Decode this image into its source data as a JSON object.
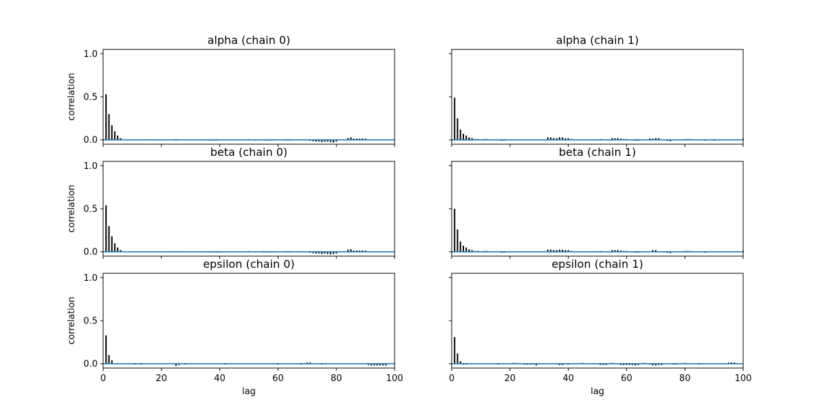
{
  "chart_data": [
    {
      "type": "bar",
      "title": "alpha (chain 0)",
      "xlabel": "",
      "ylabel": "correlation",
      "xlim": [
        0,
        100
      ],
      "ylim": [
        -0.05,
        1.05
      ],
      "xticks": [
        0,
        20,
        40,
        60,
        80,
        100
      ],
      "yticks": [
        0.0,
        0.5,
        1.0
      ],
      "x_tick_labels_shown": false,
      "y_tick_labels_shown": true,
      "lags": [
        1,
        2,
        3,
        4,
        5,
        6,
        7,
        10,
        16,
        17,
        25,
        36,
        37,
        38,
        39,
        50,
        52,
        56,
        57,
        58,
        63,
        64,
        68,
        71,
        72,
        73,
        74,
        75,
        76,
        77,
        78,
        79,
        80,
        84,
        85,
        86,
        87,
        88,
        89,
        90
      ],
      "values": [
        0.53,
        0.3,
        0.17,
        0.1,
        0.05,
        0.02,
        0.005,
        -0.005,
        0.007,
        0.007,
        0.01,
        -0.008,
        -0.008,
        -0.008,
        -0.008,
        0.008,
        -0.008,
        -0.008,
        -0.008,
        -0.008,
        -0.008,
        -0.008,
        0.008,
        -0.01,
        -0.015,
        -0.02,
        -0.02,
        -0.025,
        -0.02,
        -0.02,
        -0.025,
        -0.03,
        -0.02,
        0.02,
        0.03,
        0.015,
        0.015,
        0.015,
        0.015,
        0.015
      ],
      "reference_line_y": 0.0,
      "bar_color": "#000000",
      "line_color": "#1f77b4"
    },
    {
      "type": "bar",
      "title": "alpha (chain 1)",
      "xlabel": "",
      "ylabel": "",
      "xlim": [
        0,
        100
      ],
      "ylim": [
        -0.05,
        1.05
      ],
      "xticks": [
        0,
        20,
        40,
        60,
        80,
        100
      ],
      "yticks": [
        0.0,
        0.5,
        1.0
      ],
      "x_tick_labels_shown": false,
      "y_tick_labels_shown": false,
      "lags": [
        1,
        2,
        3,
        4,
        5,
        6,
        7,
        8,
        9,
        11,
        12,
        17,
        18,
        33,
        34,
        35,
        36,
        37,
        38,
        39,
        40,
        41,
        51,
        55,
        56,
        57,
        58,
        59,
        60,
        63,
        64,
        68,
        69,
        70,
        71,
        74,
        75,
        80,
        81,
        82,
        87,
        90,
        100
      ],
      "values": [
        0.49,
        0.25,
        0.12,
        0.07,
        0.05,
        0.03,
        0.02,
        0.01,
        0.01,
        0.01,
        0.01,
        -0.01,
        -0.01,
        0.03,
        0.03,
        0.02,
        0.02,
        0.03,
        0.03,
        0.02,
        0.02,
        0.01,
        0.01,
        0.02,
        0.02,
        0.02,
        0.015,
        0.01,
        0.01,
        -0.01,
        -0.01,
        0.015,
        0.015,
        0.02,
        0.02,
        -0.01,
        -0.015,
        0.01,
        0.01,
        0.01,
        -0.01,
        -0.01,
        0.01
      ],
      "reference_line_y": 0.0,
      "bar_color": "#000000",
      "line_color": "#1f77b4"
    },
    {
      "type": "bar",
      "title": "beta (chain 0)",
      "xlabel": "",
      "ylabel": "correlation",
      "xlim": [
        0,
        100
      ],
      "ylim": [
        -0.05,
        1.05
      ],
      "xticks": [
        0,
        20,
        40,
        60,
        80,
        100
      ],
      "yticks": [
        0.0,
        0.5,
        1.0
      ],
      "x_tick_labels_shown": false,
      "y_tick_labels_shown": true,
      "lags": [
        1,
        2,
        3,
        4,
        5,
        6,
        7,
        25,
        36,
        37,
        38,
        39,
        40,
        50,
        52,
        55,
        56,
        57,
        58,
        63,
        64,
        68,
        71,
        72,
        73,
        74,
        75,
        76,
        77,
        78,
        79,
        80,
        84,
        85,
        86,
        87,
        88,
        89,
        90
      ],
      "values": [
        0.54,
        0.3,
        0.18,
        0.1,
        0.05,
        0.02,
        0.005,
        0.008,
        -0.008,
        -0.008,
        -0.008,
        -0.008,
        -0.008,
        0.008,
        -0.008,
        -0.008,
        -0.008,
        -0.008,
        -0.008,
        -0.008,
        -0.008,
        0.008,
        -0.01,
        -0.015,
        -0.02,
        -0.02,
        -0.025,
        -0.02,
        -0.025,
        -0.03,
        -0.025,
        -0.02,
        0.025,
        0.03,
        0.015,
        0.015,
        0.015,
        0.015,
        0.015
      ],
      "reference_line_y": 0.0,
      "bar_color": "#000000",
      "line_color": "#1f77b4"
    },
    {
      "type": "bar",
      "title": "beta (chain 1)",
      "xlabel": "",
      "ylabel": "",
      "xlim": [
        0,
        100
      ],
      "ylim": [
        -0.05,
        1.05
      ],
      "xticks": [
        0,
        20,
        40,
        60,
        80,
        100
      ],
      "yticks": [
        0.0,
        0.5,
        1.0
      ],
      "x_tick_labels_shown": false,
      "y_tick_labels_shown": false,
      "lags": [
        1,
        2,
        3,
        4,
        5,
        6,
        7,
        8,
        9,
        11,
        12,
        17,
        18,
        33,
        34,
        35,
        36,
        37,
        38,
        39,
        40,
        41,
        51,
        55,
        56,
        57,
        58,
        59,
        60,
        63,
        64,
        69,
        70,
        74,
        75,
        80,
        81,
        82,
        87,
        100
      ],
      "values": [
        0.5,
        0.26,
        0.12,
        0.07,
        0.05,
        0.03,
        0.02,
        0.01,
        0.01,
        0.01,
        0.01,
        -0.01,
        -0.01,
        0.025,
        0.025,
        0.02,
        0.02,
        0.025,
        0.025,
        0.02,
        0.02,
        0.01,
        0.01,
        0.02,
        0.02,
        0.02,
        0.015,
        0.01,
        0.01,
        -0.01,
        -0.01,
        0.02,
        0.02,
        -0.01,
        -0.015,
        0.01,
        0.01,
        0.01,
        -0.01,
        0.01
      ],
      "reference_line_y": 0.0,
      "bar_color": "#000000",
      "line_color": "#1f77b4"
    },
    {
      "type": "bar",
      "title": "epsilon (chain 0)",
      "xlabel": "lag",
      "ylabel": "correlation",
      "xlim": [
        0,
        100
      ],
      "ylim": [
        -0.05,
        1.05
      ],
      "xticks": [
        0,
        20,
        40,
        60,
        80,
        100
      ],
      "yticks": [
        0.0,
        0.5,
        1.0
      ],
      "x_tick_labels_shown": true,
      "y_tick_labels_shown": true,
      "lags": [
        1,
        2,
        3,
        11,
        13,
        25,
        26,
        28,
        42,
        60,
        68,
        70,
        71,
        75,
        91,
        92,
        93,
        94,
        95,
        96,
        97
      ],
      "values": [
        0.33,
        0.1,
        0.04,
        -0.01,
        -0.01,
        -0.025,
        -0.015,
        -0.01,
        -0.01,
        -0.01,
        -0.01,
        0.015,
        0.015,
        -0.01,
        -0.015,
        -0.02,
        -0.02,
        -0.02,
        -0.02,
        -0.02,
        -0.02
      ],
      "reference_line_y": 0.0,
      "bar_color": "#000000",
      "line_color": "#1f77b4"
    },
    {
      "type": "bar",
      "title": "epsilon (chain 1)",
      "xlabel": "lag",
      "ylabel": "",
      "xlim": [
        0,
        100
      ],
      "ylim": [
        -0.05,
        1.05
      ],
      "xticks": [
        0,
        20,
        40,
        60,
        80,
        100
      ],
      "yticks": [
        0.0,
        0.5,
        1.0
      ],
      "x_tick_labels_shown": true,
      "y_tick_labels_shown": false,
      "lags": [
        1,
        2,
        3,
        4,
        5,
        16,
        21,
        22,
        25,
        26,
        27,
        28,
        29,
        37,
        38,
        40,
        45,
        51,
        52,
        53,
        55,
        58,
        59,
        60,
        61,
        62,
        63,
        64,
        66,
        68,
        69,
        70,
        71,
        72,
        76,
        77,
        80,
        85,
        95,
        96,
        97
      ],
      "values": [
        0.31,
        0.12,
        0.03,
        -0.01,
        -0.01,
        -0.01,
        0.01,
        0.01,
        -0.01,
        -0.01,
        -0.01,
        -0.01,
        -0.02,
        -0.015,
        -0.015,
        -0.01,
        0.01,
        -0.015,
        -0.015,
        -0.015,
        0.01,
        -0.015,
        -0.015,
        -0.015,
        -0.015,
        -0.015,
        -0.02,
        -0.015,
        0.01,
        -0.01,
        -0.02,
        -0.02,
        -0.015,
        -0.015,
        -0.01,
        -0.01,
        0.01,
        -0.01,
        0.015,
        0.015,
        0.015
      ],
      "reference_line_y": 0.0,
      "bar_color": "#000000",
      "line_color": "#1f77b4"
    }
  ]
}
